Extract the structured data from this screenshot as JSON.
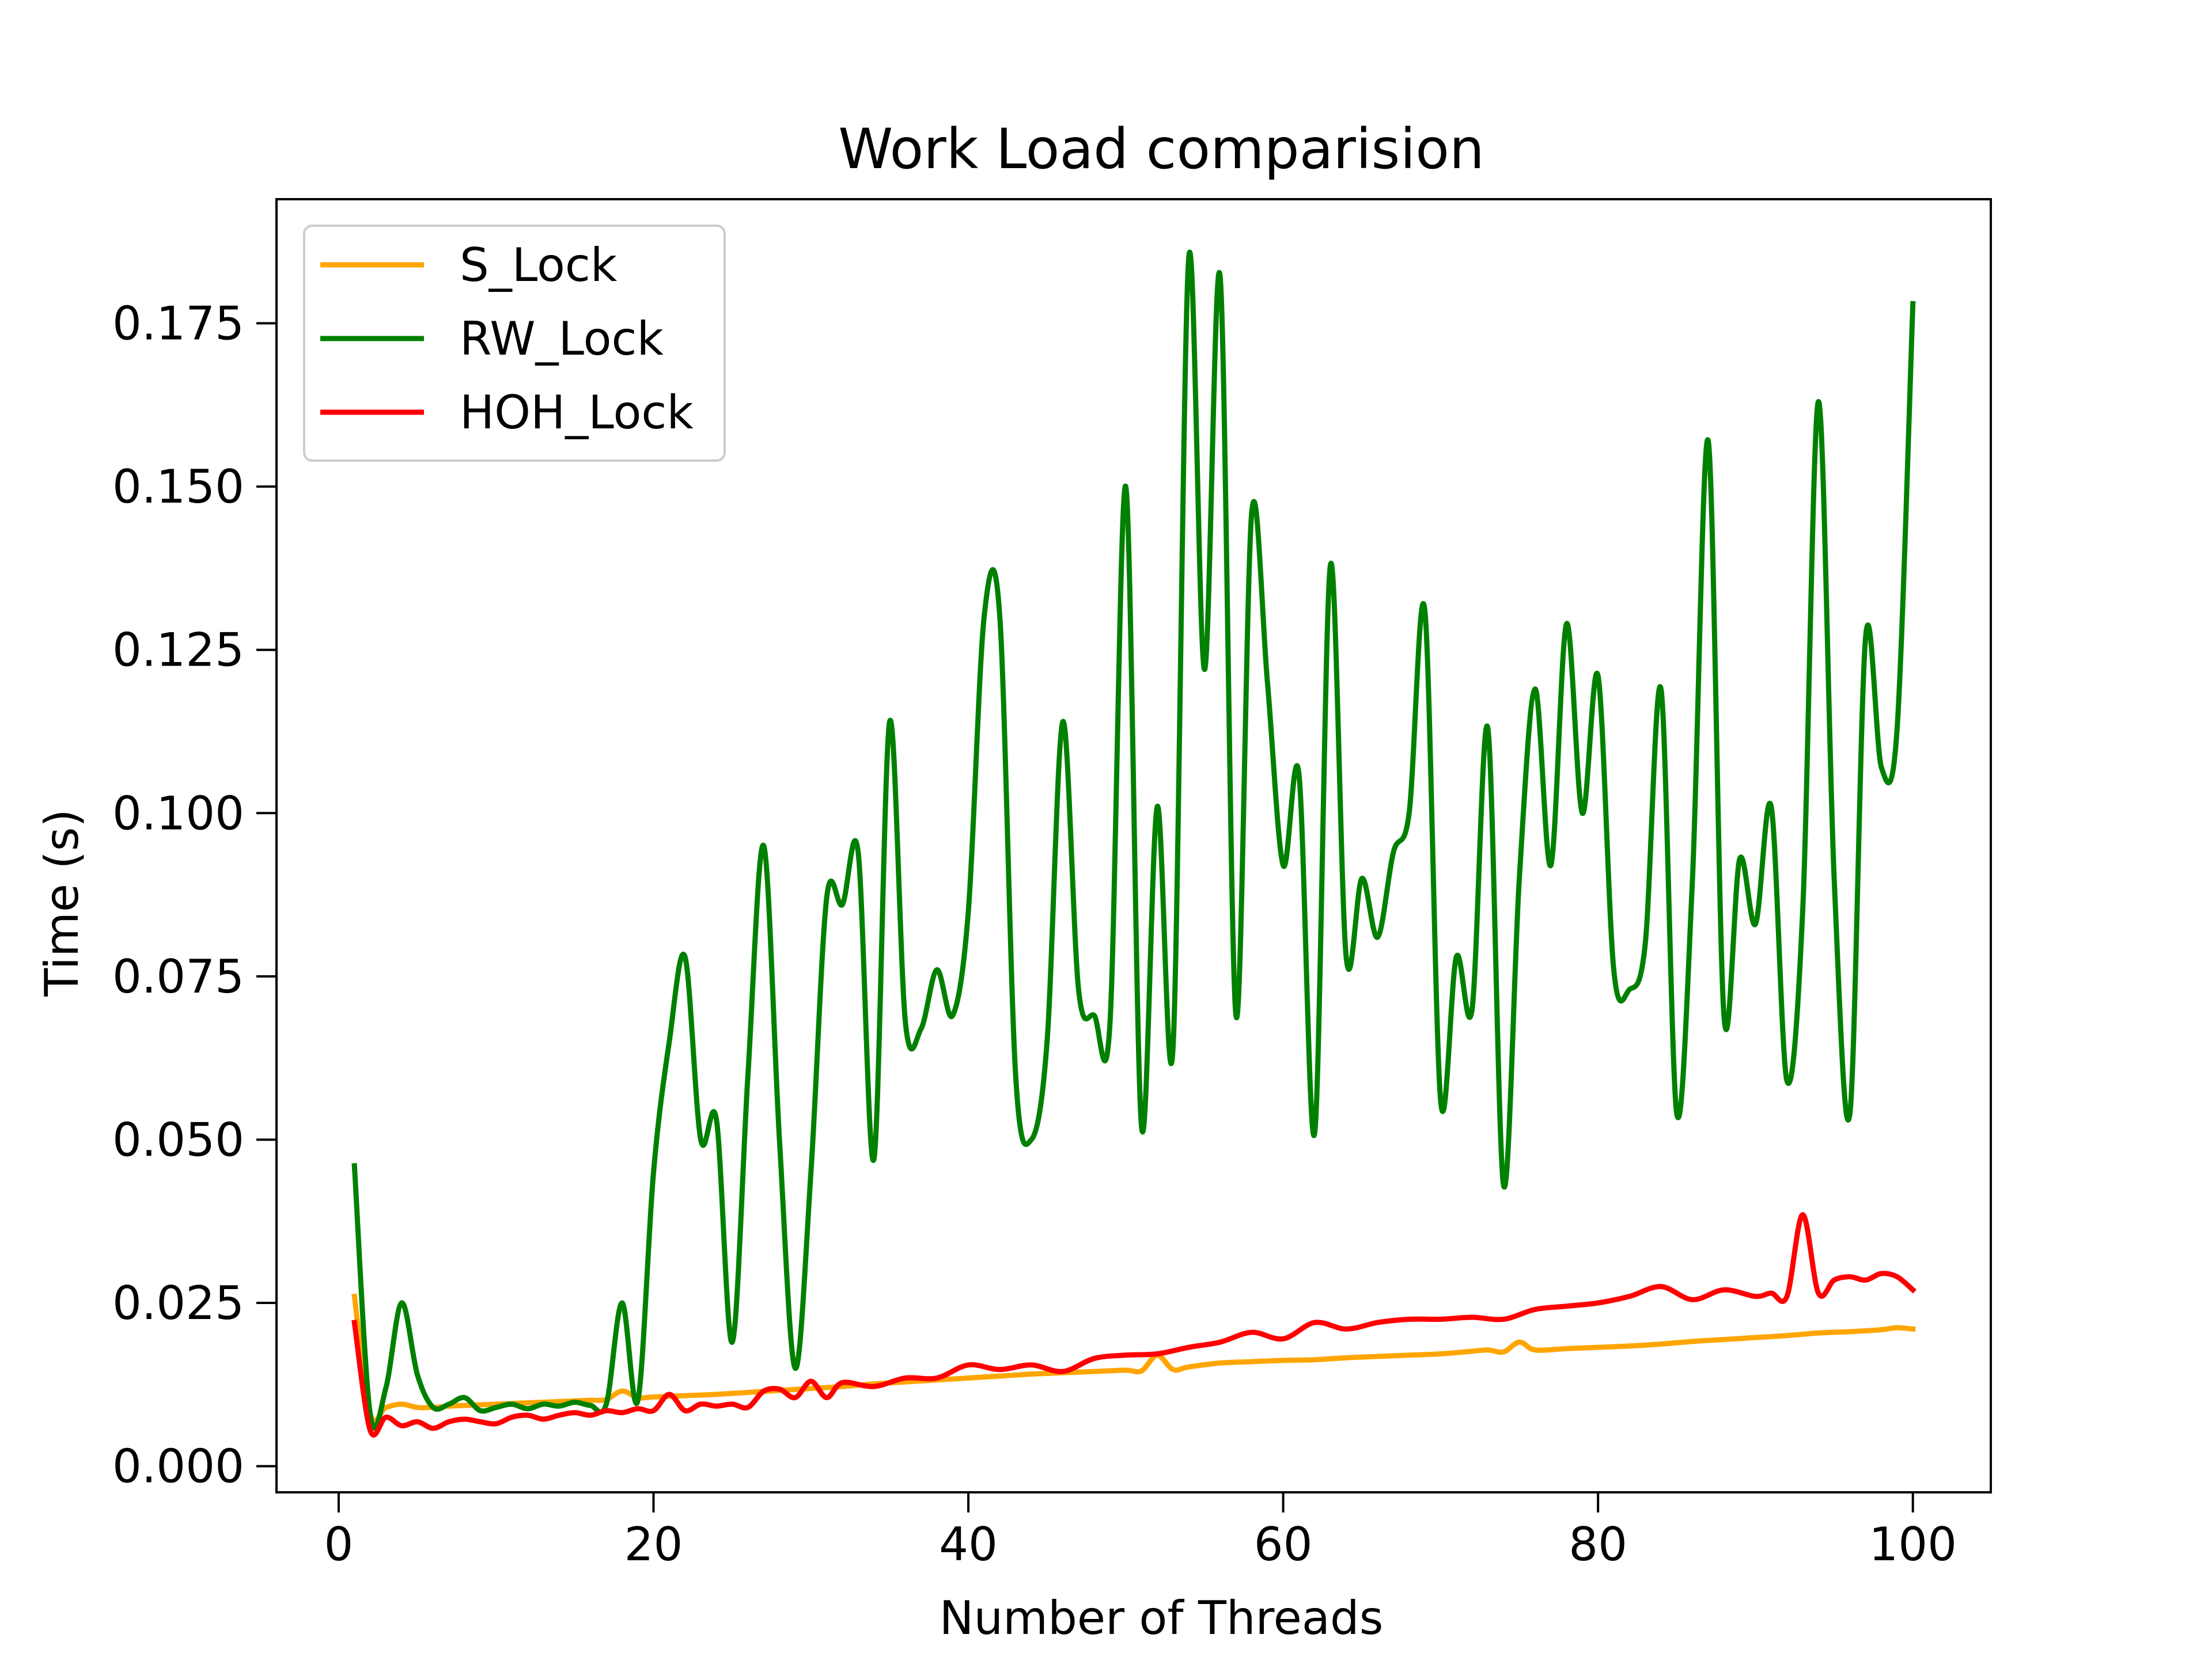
{
  "chart_data": {
    "type": "line",
    "title": "Work Load comparision",
    "xlabel": "Number of Threads",
    "ylabel": "Time (s)",
    "xlim": [
      -3.95,
      104.95
    ],
    "ylim": [
      -0.004,
      0.194
    ],
    "xticks": [
      0,
      20,
      40,
      60,
      80,
      100
    ],
    "xtick_labels": [
      "0",
      "20",
      "40",
      "60",
      "80",
      "100"
    ],
    "yticks": [
      0.0,
      0.025,
      0.05,
      0.075,
      0.1,
      0.125,
      0.15,
      0.175
    ],
    "ytick_labels": [
      "0.000",
      "0.025",
      "0.050",
      "0.075",
      "0.100",
      "0.125",
      "0.150",
      "0.175"
    ],
    "grid": false,
    "legend_position": "upper left",
    "series": [
      {
        "name": "S_Lock",
        "color": "#ffa500",
        "x": [
          1,
          2,
          3,
          4,
          5,
          6,
          7,
          8,
          9,
          10,
          11,
          12,
          13,
          14,
          15,
          16,
          17,
          18,
          19,
          20,
          22,
          24,
          26,
          28,
          30,
          32,
          34,
          36,
          38,
          40,
          42,
          44,
          46,
          48,
          50,
          51,
          52,
          53,
          54,
          56,
          58,
          60,
          62,
          64,
          66,
          68,
          70,
          72,
          73,
          74,
          75,
          76,
          78,
          80,
          82,
          84,
          86,
          88,
          90,
          92,
          94,
          96,
          98,
          99,
          100
        ],
        "y": [
          0.026,
          0.008,
          0.009,
          0.0095,
          0.009,
          0.009,
          0.0092,
          0.0093,
          0.0094,
          0.0095,
          0.0096,
          0.0097,
          0.0098,
          0.0099,
          0.01,
          0.0101,
          0.0102,
          0.0115,
          0.0105,
          0.0106,
          0.0108,
          0.011,
          0.0113,
          0.0116,
          0.0119,
          0.0122,
          0.0126,
          0.0129,
          0.0132,
          0.0135,
          0.0138,
          0.0141,
          0.0143,
          0.0145,
          0.0147,
          0.0146,
          0.017,
          0.0148,
          0.0152,
          0.0158,
          0.016,
          0.0162,
          0.0163,
          0.0166,
          0.0168,
          0.017,
          0.0172,
          0.0176,
          0.0178,
          0.0175,
          0.019,
          0.0178,
          0.018,
          0.0182,
          0.0184,
          0.0187,
          0.0191,
          0.0194,
          0.0197,
          0.02,
          0.0204,
          0.0206,
          0.0209,
          0.0212,
          0.021
        ]
      },
      {
        "name": "RW_Lock",
        "color": "#008000",
        "x": [
          1,
          2,
          3,
          4,
          5,
          6,
          7,
          8,
          9,
          10,
          11,
          12,
          13,
          14,
          15,
          16,
          17,
          18,
          19,
          20,
          21,
          22,
          23,
          24,
          25,
          26,
          27,
          28,
          29,
          30,
          31,
          32,
          33,
          34,
          35,
          36,
          37,
          38,
          39,
          40,
          41,
          42,
          43,
          44,
          45,
          46,
          47,
          48,
          49,
          50,
          51,
          52,
          53,
          54,
          55,
          56,
          57,
          58,
          59,
          60,
          61,
          62,
          63,
          64,
          65,
          66,
          67,
          68,
          69,
          70,
          71,
          72,
          73,
          74,
          75,
          76,
          77,
          78,
          79,
          80,
          81,
          82,
          83,
          84,
          85,
          86,
          87,
          88,
          89,
          90,
          91,
          92,
          93,
          94,
          95,
          96,
          97,
          98,
          99,
          100
        ],
        "y": [
          0.046,
          0.008,
          0.012,
          0.025,
          0.014,
          0.009,
          0.0095,
          0.0105,
          0.0085,
          0.009,
          0.0095,
          0.0088,
          0.0095,
          0.0092,
          0.0098,
          0.0093,
          0.0095,
          0.025,
          0.01,
          0.045,
          0.065,
          0.078,
          0.05,
          0.053,
          0.019,
          0.06,
          0.095,
          0.05,
          0.015,
          0.045,
          0.087,
          0.086,
          0.094,
          0.047,
          0.114,
          0.068,
          0.067,
          0.076,
          0.069,
          0.085,
          0.13,
          0.13,
          0.06,
          0.05,
          0.065,
          0.114,
          0.073,
          0.069,
          0.068,
          0.15,
          0.052,
          0.101,
          0.064,
          0.185,
          0.122,
          0.182,
          0.069,
          0.146,
          0.12,
          0.092,
          0.106,
          0.051,
          0.138,
          0.078,
          0.09,
          0.081,
          0.094,
          0.1,
          0.131,
          0.056,
          0.078,
          0.07,
          0.113,
          0.043,
          0.09,
          0.119,
          0.092,
          0.129,
          0.1,
          0.121,
          0.076,
          0.073,
          0.08,
          0.119,
          0.054,
          0.09,
          0.157,
          0.069,
          0.093,
          0.083,
          0.101,
          0.059,
          0.085,
          0.163,
          0.09,
          0.054,
          0.127,
          0.107,
          0.113,
          0.178
        ]
      },
      {
        "name": "HOH_Lock",
        "color": "#ff0000",
        "x": [
          1,
          2,
          3,
          4,
          5,
          6,
          7,
          8,
          9,
          10,
          11,
          12,
          13,
          14,
          15,
          16,
          17,
          18,
          19,
          20,
          21,
          22,
          23,
          24,
          25,
          26,
          27,
          28,
          29,
          30,
          31,
          32,
          34,
          36,
          38,
          40,
          42,
          44,
          46,
          48,
          50,
          52,
          54,
          56,
          58,
          60,
          62,
          64,
          66,
          68,
          70,
          72,
          74,
          76,
          78,
          80,
          82,
          84,
          86,
          88,
          90,
          91,
          92,
          93,
          94,
          95,
          96,
          97,
          98,
          99,
          100
        ],
        "y": [
          0.022,
          0.0055,
          0.0075,
          0.0062,
          0.0068,
          0.0058,
          0.0068,
          0.0072,
          0.0068,
          0.0065,
          0.0075,
          0.0078,
          0.0072,
          0.0078,
          0.0082,
          0.0078,
          0.0085,
          0.0082,
          0.0088,
          0.0085,
          0.011,
          0.0085,
          0.0095,
          0.0092,
          0.0095,
          0.009,
          0.0115,
          0.0118,
          0.0105,
          0.013,
          0.0105,
          0.0128,
          0.0122,
          0.0135,
          0.0135,
          0.0155,
          0.0148,
          0.0155,
          0.0145,
          0.0165,
          0.017,
          0.0172,
          0.0182,
          0.019,
          0.0205,
          0.0195,
          0.022,
          0.021,
          0.022,
          0.0225,
          0.0225,
          0.0228,
          0.0225,
          0.024,
          0.0245,
          0.025,
          0.026,
          0.0275,
          0.0255,
          0.027,
          0.026,
          0.0265,
          0.026,
          0.0385,
          0.0265,
          0.0285,
          0.029,
          0.0285,
          0.0295,
          0.029,
          0.027
        ]
      }
    ]
  }
}
